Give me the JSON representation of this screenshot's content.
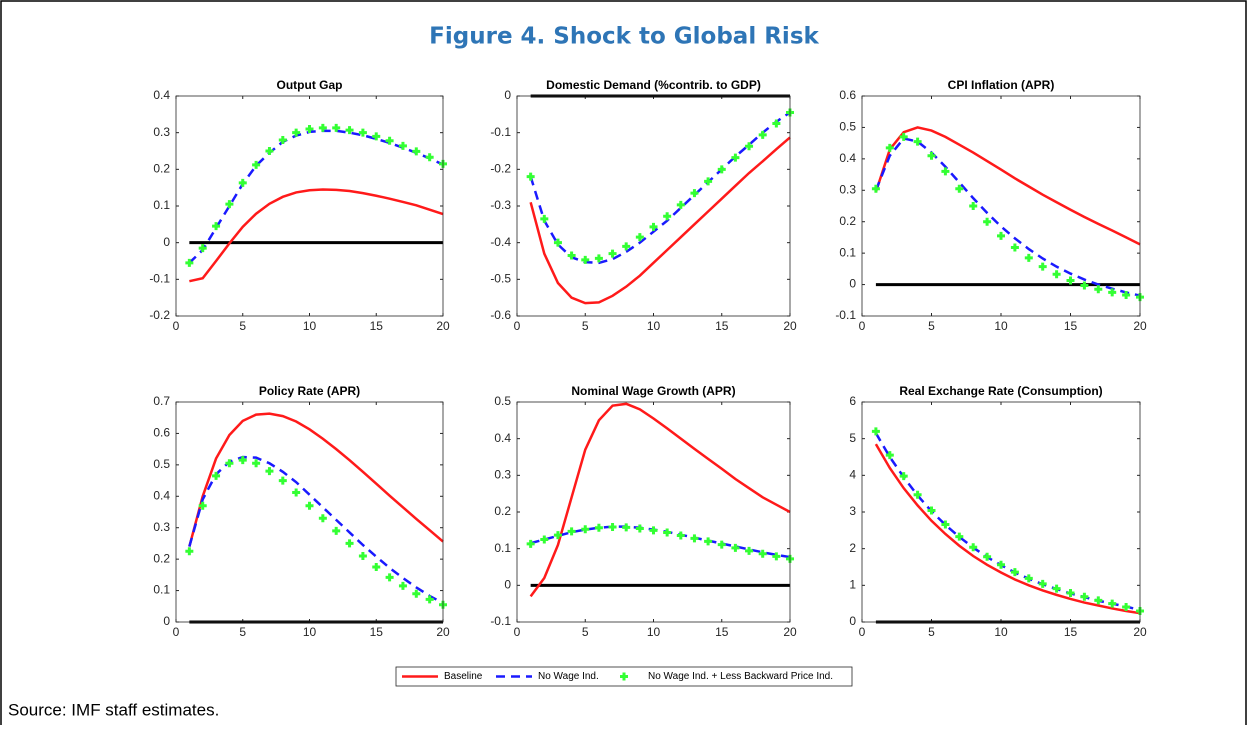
{
  "title": "Figure 4. Shock to Global Risk",
  "source": "Source: IMF staff estimates.",
  "chart_data": [
    {
      "type": "line",
      "title": "Output Gap",
      "reference_line": 0,
      "x": [
        1,
        2,
        3,
        4,
        5,
        6,
        7,
        8,
        9,
        10,
        11,
        12,
        13,
        14,
        15,
        16,
        17,
        18,
        19,
        20
      ],
      "xlim": [
        0,
        20
      ],
      "xticks": [
        0,
        5,
        10,
        15,
        20
      ],
      "ylim": [
        -0.2,
        0.4
      ],
      "yticks": [
        -0.2,
        -0.1,
        0,
        0.1,
        0.2,
        0.3,
        0.4
      ],
      "series": [
        {
          "name": "Baseline",
          "color": "#ff1a1a",
          "style": "solid",
          "values": [
            -0.105,
            -0.097,
            -0.05,
            -0.002,
            0.043,
            0.079,
            0.106,
            0.125,
            0.137,
            0.143,
            0.145,
            0.144,
            0.141,
            0.135,
            0.128,
            0.12,
            0.111,
            0.102,
            0.09,
            0.078
          ]
        },
        {
          "name": "No Wage Ind.",
          "color": "#1a1aff",
          "style": "dashed",
          "values": [
            -0.055,
            -0.02,
            0.04,
            0.1,
            0.16,
            0.21,
            0.245,
            0.275,
            0.292,
            0.302,
            0.305,
            0.305,
            0.3,
            0.293,
            0.283,
            0.272,
            0.259,
            0.245,
            0.23,
            0.213
          ]
        },
        {
          "name": "No Wage Ind. + Less Backward Price Ind.",
          "color": "#33ff33",
          "style": "plus",
          "values": [
            -0.055,
            -0.015,
            0.045,
            0.105,
            0.163,
            0.212,
            0.25,
            0.28,
            0.3,
            0.31,
            0.313,
            0.313,
            0.307,
            0.3,
            0.29,
            0.278,
            0.264,
            0.249,
            0.233,
            0.215
          ]
        }
      ]
    },
    {
      "type": "line",
      "title": "Domestic Demand (%contrib. to GDP)",
      "reference_line": 0,
      "x": [
        1,
        2,
        3,
        4,
        5,
        6,
        7,
        8,
        9,
        10,
        11,
        12,
        13,
        14,
        15,
        16,
        17,
        18,
        19,
        20
      ],
      "xlim": [
        0,
        20
      ],
      "xticks": [
        0,
        5,
        10,
        15,
        20
      ],
      "ylim": [
        -0.6,
        0
      ],
      "yticks": [
        -0.6,
        -0.5,
        -0.4,
        -0.3,
        -0.2,
        -0.1,
        0
      ],
      "series": [
        {
          "name": "Baseline",
          "color": "#ff1a1a",
          "style": "solid",
          "values": [
            -0.29,
            -0.43,
            -0.51,
            -0.55,
            -0.565,
            -0.563,
            -0.545,
            -0.52,
            -0.49,
            -0.455,
            -0.42,
            -0.385,
            -0.35,
            -0.315,
            -0.28,
            -0.245,
            -0.21,
            -0.178,
            -0.145,
            -0.113
          ]
        },
        {
          "name": "No Wage Ind.",
          "color": "#1a1aff",
          "style": "dashed",
          "values": [
            -0.22,
            -0.34,
            -0.405,
            -0.44,
            -0.453,
            -0.455,
            -0.445,
            -0.425,
            -0.4,
            -0.37,
            -0.34,
            -0.305,
            -0.27,
            -0.235,
            -0.2,
            -0.165,
            -0.133,
            -0.1,
            -0.07,
            -0.045
          ]
        },
        {
          "name": "No Wage Ind. + Less Backward Price Ind.",
          "color": "#33ff33",
          "style": "plus",
          "values": [
            -0.22,
            -0.335,
            -0.4,
            -0.435,
            -0.447,
            -0.443,
            -0.43,
            -0.41,
            -0.385,
            -0.357,
            -0.328,
            -0.297,
            -0.265,
            -0.233,
            -0.2,
            -0.168,
            -0.137,
            -0.106,
            -0.075,
            -0.045
          ]
        }
      ]
    },
    {
      "type": "line",
      "title": "CPI Inflation (APR)",
      "reference_line": 0,
      "x": [
        1,
        2,
        3,
        4,
        5,
        6,
        7,
        8,
        9,
        10,
        11,
        12,
        13,
        14,
        15,
        16,
        17,
        18,
        19,
        20
      ],
      "xlim": [
        0,
        20
      ],
      "xticks": [
        0,
        5,
        10,
        15,
        20
      ],
      "ylim": [
        -0.1,
        0.6
      ],
      "yticks": [
        -0.1,
        0,
        0.1,
        0.2,
        0.3,
        0.4,
        0.5,
        0.6
      ],
      "series": [
        {
          "name": "Baseline",
          "color": "#ff1a1a",
          "style": "solid",
          "values": [
            0.295,
            0.43,
            0.485,
            0.5,
            0.49,
            0.47,
            0.445,
            0.42,
            0.393,
            0.366,
            0.338,
            0.312,
            0.286,
            0.262,
            0.238,
            0.215,
            0.193,
            0.172,
            0.15,
            0.128
          ]
        },
        {
          "name": "No Wage Ind.",
          "color": "#1a1aff",
          "style": "dashed",
          "values": [
            0.3,
            0.41,
            0.465,
            0.455,
            0.42,
            0.375,
            0.325,
            0.275,
            0.228,
            0.185,
            0.147,
            0.113,
            0.083,
            0.057,
            0.035,
            0.016,
            0.0,
            -0.013,
            -0.025,
            -0.035
          ]
        },
        {
          "name": "No Wage Ind. + Less Backward Price Ind.",
          "color": "#33ff33",
          "style": "plus",
          "values": [
            0.305,
            0.435,
            0.47,
            0.455,
            0.41,
            0.36,
            0.305,
            0.25,
            0.2,
            0.155,
            0.118,
            0.085,
            0.057,
            0.033,
            0.013,
            -0.003,
            -0.015,
            -0.025,
            -0.033,
            -0.04
          ]
        }
      ]
    },
    {
      "type": "line",
      "title": "Policy Rate (APR)",
      "reference_line": 0,
      "x": [
        1,
        2,
        3,
        4,
        5,
        6,
        7,
        8,
        9,
        10,
        11,
        12,
        13,
        14,
        15,
        16,
        17,
        18,
        19,
        20
      ],
      "xlim": [
        0,
        20
      ],
      "xticks": [
        0,
        5,
        10,
        15,
        20
      ],
      "ylim": [
        0,
        0.7
      ],
      "yticks": [
        0,
        0.1,
        0.2,
        0.3,
        0.4,
        0.5,
        0.6,
        0.7
      ],
      "series": [
        {
          "name": "Baseline",
          "color": "#ff1a1a",
          "style": "solid",
          "values": [
            0.24,
            0.4,
            0.52,
            0.595,
            0.64,
            0.66,
            0.663,
            0.655,
            0.638,
            0.613,
            0.583,
            0.55,
            0.515,
            0.478,
            0.44,
            0.402,
            0.365,
            0.328,
            0.292,
            0.256
          ]
        },
        {
          "name": "No Wage Ind.",
          "color": "#1a1aff",
          "style": "dashed",
          "values": [
            0.24,
            0.39,
            0.47,
            0.51,
            0.525,
            0.523,
            0.505,
            0.478,
            0.445,
            0.405,
            0.365,
            0.325,
            0.285,
            0.245,
            0.208,
            0.172,
            0.14,
            0.11,
            0.083,
            0.06
          ]
        },
        {
          "name": "No Wage Ind. + Less Backward Price Ind.",
          "color": "#33ff33",
          "style": "plus",
          "values": [
            0.225,
            0.37,
            0.465,
            0.505,
            0.515,
            0.505,
            0.48,
            0.45,
            0.412,
            0.37,
            0.33,
            0.29,
            0.25,
            0.21,
            0.175,
            0.142,
            0.115,
            0.09,
            0.072,
            0.055
          ]
        }
      ]
    },
    {
      "type": "line",
      "title": "Nominal Wage Growth (APR)",
      "reference_line": 0,
      "x": [
        1,
        2,
        3,
        4,
        5,
        6,
        7,
        8,
        9,
        10,
        11,
        12,
        13,
        14,
        15,
        16,
        17,
        18,
        19,
        20
      ],
      "xlim": [
        0,
        20
      ],
      "xticks": [
        0,
        5,
        10,
        15,
        20
      ],
      "ylim": [
        -0.1,
        0.5
      ],
      "yticks": [
        -0.1,
        0,
        0.1,
        0.2,
        0.3,
        0.4,
        0.5
      ],
      "series": [
        {
          "name": "Baseline",
          "color": "#ff1a1a",
          "style": "solid",
          "values": [
            -0.03,
            0.02,
            0.11,
            0.24,
            0.37,
            0.45,
            0.49,
            0.495,
            0.48,
            0.455,
            0.428,
            0.4,
            0.372,
            0.345,
            0.318,
            0.29,
            0.265,
            0.24,
            0.22,
            0.2
          ]
        },
        {
          "name": "No Wage Ind.",
          "color": "#1a1aff",
          "style": "dashed",
          "values": [
            0.115,
            0.125,
            0.135,
            0.145,
            0.152,
            0.157,
            0.16,
            0.16,
            0.157,
            0.152,
            0.146,
            0.138,
            0.13,
            0.122,
            0.114,
            0.106,
            0.098,
            0.09,
            0.083,
            0.077
          ]
        },
        {
          "name": "No Wage Ind. + Less Backward Price Ind.",
          "color": "#33ff33",
          "style": "plus",
          "values": [
            0.113,
            0.125,
            0.137,
            0.147,
            0.153,
            0.157,
            0.159,
            0.158,
            0.155,
            0.15,
            0.144,
            0.136,
            0.128,
            0.12,
            0.111,
            0.102,
            0.094,
            0.086,
            0.079,
            0.072
          ]
        }
      ]
    },
    {
      "type": "line",
      "title": "Real Exchange Rate (Consumption)",
      "reference_line": 0,
      "x": [
        1,
        2,
        3,
        4,
        5,
        6,
        7,
        8,
        9,
        10,
        11,
        12,
        13,
        14,
        15,
        16,
        17,
        18,
        19,
        20
      ],
      "xlim": [
        0,
        20
      ],
      "xticks": [
        0,
        5,
        10,
        15,
        20
      ],
      "ylim": [
        0,
        6
      ],
      "yticks": [
        0,
        1,
        2,
        3,
        4,
        5,
        6
      ],
      "series": [
        {
          "name": "Baseline",
          "color": "#ff1a1a",
          "style": "solid",
          "values": [
            4.85,
            4.2,
            3.65,
            3.18,
            2.76,
            2.4,
            2.08,
            1.8,
            1.56,
            1.35,
            1.16,
            1.0,
            0.86,
            0.74,
            0.63,
            0.53,
            0.45,
            0.37,
            0.3,
            0.24
          ]
        },
        {
          "name": "No Wage Ind.",
          "color": "#1a1aff",
          "style": "dashed",
          "values": [
            5.15,
            4.5,
            3.95,
            3.45,
            3.02,
            2.65,
            2.32,
            2.03,
            1.77,
            1.55,
            1.35,
            1.18,
            1.03,
            0.9,
            0.78,
            0.68,
            0.58,
            0.5,
            0.42,
            0.33
          ]
        },
        {
          "name": "No Wage Ind. + Less Backward Price Ind.",
          "color": "#33ff33",
          "style": "plus",
          "values": [
            5.2,
            4.55,
            3.98,
            3.47,
            3.04,
            2.66,
            2.33,
            2.04,
            1.78,
            1.56,
            1.36,
            1.19,
            1.04,
            0.91,
            0.79,
            0.69,
            0.59,
            0.5,
            0.41,
            0.3
          ]
        }
      ]
    }
  ]
}
